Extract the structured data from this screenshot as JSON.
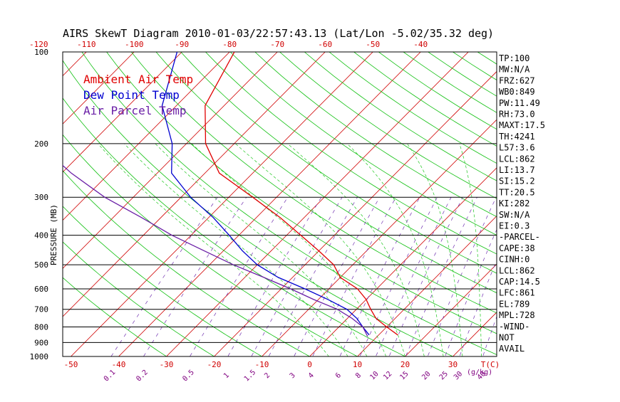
{
  "title": "AIRS SkewT Diagram 2010-01-03/22:57:43.13 (Lat/Lon -5.02/35.32 deg)",
  "chart_data": {
    "type": "line",
    "diagram": "skew-T log-P",
    "ylabel": "PRESSURE (MB)",
    "y_scale": "log",
    "ylim": [
      1000,
      100
    ],
    "pressure_ticks": [
      100,
      200,
      300,
      400,
      500,
      600,
      700,
      800,
      900,
      1000
    ],
    "bottom_temp_ticks": [
      -50,
      -40,
      -30,
      -20,
      -10,
      0,
      10,
      20,
      30
    ],
    "bottom_axis_label": "T(C)",
    "top_temp_ticks": [
      -120,
      -110,
      -100,
      -90,
      -80,
      -70,
      -60,
      -50,
      -40
    ],
    "mixing_ratio_ticks": [
      "0.1",
      "0.2",
      "0.5",
      "1",
      "1.5",
      "2",
      "3",
      "4",
      "6",
      "8",
      "10",
      "12",
      "15",
      "20",
      "25",
      "30",
      "40"
    ],
    "mixing_ratio_values": [
      0.1,
      0.2,
      0.5,
      1,
      1.5,
      2,
      3,
      4,
      6,
      8,
      10,
      12,
      15,
      20,
      25,
      30,
      40
    ],
    "mixing_ratio_unit": "(g/kg)",
    "legend": [
      {
        "label": "Ambient Air Temp",
        "color": "#e00000"
      },
      {
        "label": "Dew Point Temp",
        "color": "#0000d0"
      },
      {
        "label": "Air Parcel Temp",
        "color": "#6a1fa6"
      }
    ],
    "series": [
      {
        "name": "Ambient Air Temp",
        "color": "#e00000",
        "points": [
          [
            100,
            -79
          ],
          [
            150,
            -74
          ],
          [
            200,
            -66
          ],
          [
            250,
            -57
          ],
          [
            300,
            -45
          ],
          [
            350,
            -35
          ],
          [
            400,
            -27
          ],
          [
            450,
            -20
          ],
          [
            500,
            -14
          ],
          [
            550,
            -10
          ],
          [
            600,
            -4
          ],
          [
            650,
            0
          ],
          [
            700,
            3
          ],
          [
            750,
            6
          ],
          [
            800,
            10
          ],
          [
            850,
            14
          ]
        ]
      },
      {
        "name": "Dew Point Temp",
        "color": "#0000d0",
        "points": [
          [
            100,
            -91
          ],
          [
            150,
            -83
          ],
          [
            200,
            -73
          ],
          [
            250,
            -67
          ],
          [
            300,
            -58
          ],
          [
            350,
            -49
          ],
          [
            400,
            -42
          ],
          [
            450,
            -36
          ],
          [
            500,
            -30
          ],
          [
            550,
            -23
          ],
          [
            600,
            -15
          ],
          [
            650,
            -8
          ],
          [
            700,
            -2
          ],
          [
            750,
            2
          ],
          [
            800,
            5
          ],
          [
            850,
            8
          ]
        ]
      },
      {
        "name": "Air Parcel Temp",
        "color": "#6a1fa6",
        "points": [
          [
            100,
            -125
          ],
          [
            150,
            -113
          ],
          [
            200,
            -101
          ],
          [
            250,
            -88
          ],
          [
            300,
            -76
          ],
          [
            350,
            -64
          ],
          [
            400,
            -54
          ],
          [
            450,
            -44
          ],
          [
            500,
            -35
          ],
          [
            550,
            -26
          ],
          [
            600,
            -18
          ],
          [
            650,
            -11
          ],
          [
            700,
            -4
          ],
          [
            750,
            1
          ],
          [
            800,
            5
          ],
          [
            860,
            8
          ]
        ]
      }
    ],
    "indices": [
      "TP:100",
      "MW:N/A",
      "FRZ:627",
      "WB0:849",
      "PW:11.49",
      "RH:73.0",
      "MAXT:17.5",
      "TH:4241",
      "L57:3.6",
      "LCL:862",
      "LI:13.7",
      "SI:15.2",
      "TT:20.5",
      "KI:282",
      "SW:N/A",
      "EI:0.3",
      "-PARCEL-",
      "CAPE:38",
      "CINH:0",
      "LCL:862",
      "CAP:14.5",
      "LFC:861",
      "EL:789",
      "MPL:728",
      "-WIND-",
      "NOT",
      "AVAIL"
    ]
  }
}
